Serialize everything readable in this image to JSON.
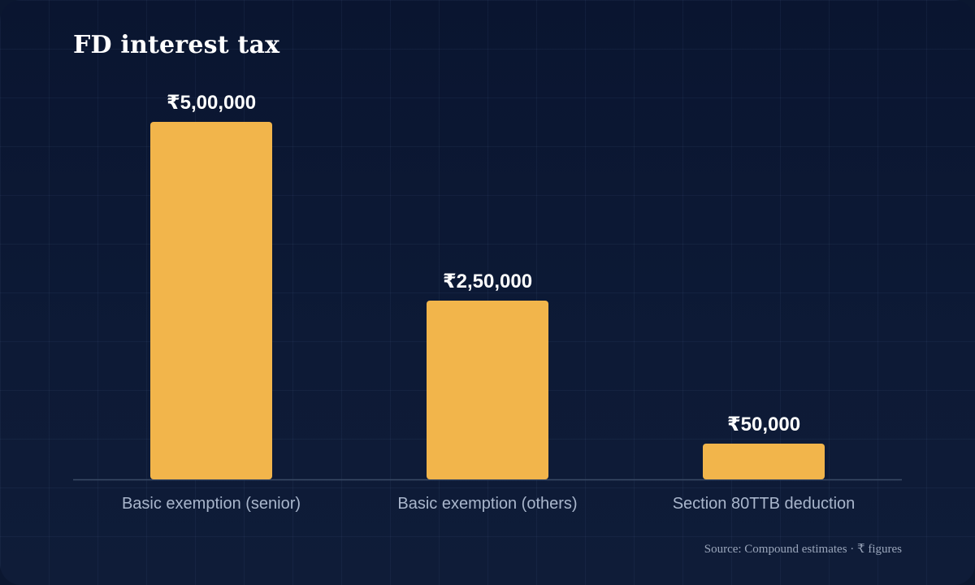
{
  "chart_data": {
    "type": "bar",
    "title": "FD interest tax",
    "categories": [
      "Basic exemption (senior)",
      "Basic exemption (others)",
      "Section 80TTB deduction"
    ],
    "values": [
      500000,
      250000,
      50000
    ],
    "value_labels": [
      "₹5,00,000",
      "₹2,50,000",
      "₹50,000"
    ],
    "ylim": [
      0,
      500000
    ],
    "xlabel": "",
    "ylabel": "",
    "grid": false,
    "bar_color": "#f2b54b",
    "axis_color": "#3a4b66"
  },
  "footer": {
    "source": "Source: Compound estimates · ₹ figures"
  }
}
